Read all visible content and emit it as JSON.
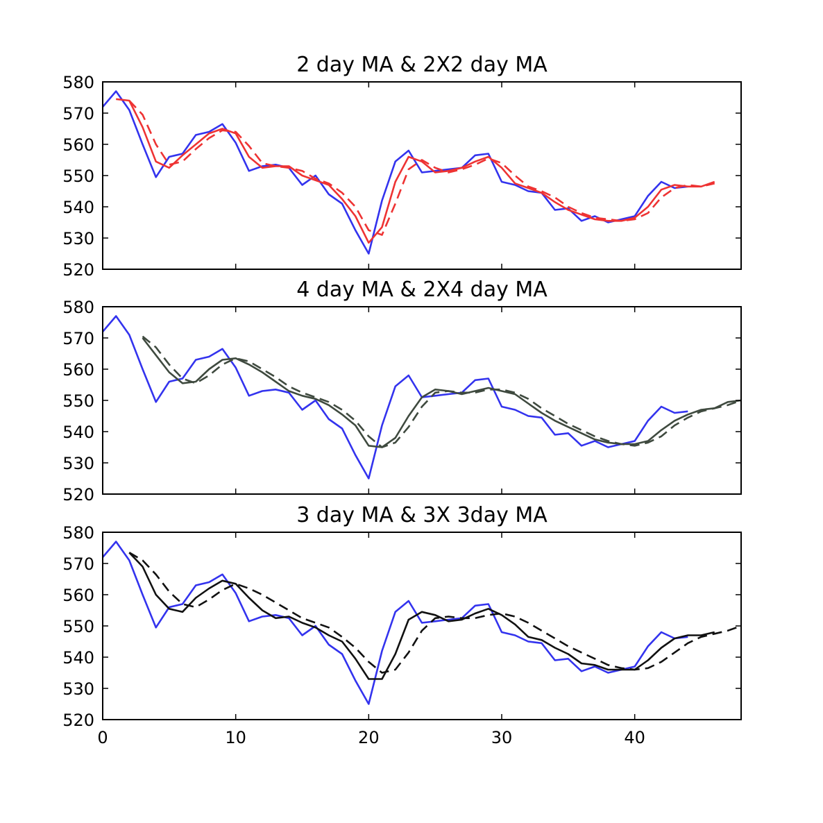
{
  "chart_data": [
    {
      "type": "line",
      "title": "2 day MA & 2X2 day MA",
      "xlim": [
        0,
        48
      ],
      "ylim": [
        520,
        580
      ],
      "xticks": [
        0,
        10,
        20,
        30,
        40
      ],
      "yticks": [
        520,
        530,
        540,
        550,
        560,
        570,
        580
      ],
      "show_xtick_labels": false,
      "grid": false,
      "series": [
        {
          "x": [
            0,
            1,
            2,
            3,
            4,
            5,
            6,
            7,
            8,
            9,
            10,
            11,
            12,
            13,
            14,
            15,
            16,
            17,
            18,
            19,
            20,
            21,
            22,
            23,
            24,
            25,
            26,
            27,
            28,
            29,
            30,
            31,
            32,
            33,
            34,
            35,
            36,
            37,
            38,
            39,
            40,
            41,
            42,
            43,
            44
          ],
          "values": [
            572,
            577,
            571,
            560,
            549.5,
            556,
            557,
            563,
            564,
            566.5,
            560.5,
            551.5,
            553,
            553.5,
            552.5,
            547,
            550,
            544,
            541,
            532.5,
            525,
            542,
            554.5,
            558,
            551,
            551.5,
            552,
            552.5,
            556.5,
            557,
            548,
            547,
            545,
            544.5,
            539,
            539.5,
            535.5,
            537,
            535,
            536,
            537,
            543.5,
            548,
            546,
            546.5
          ],
          "color": "#3333ee",
          "dash": ""
        },
        {
          "x": [
            1,
            2,
            3,
            4,
            5,
            6,
            7,
            8,
            9,
            10,
            11,
            12,
            13,
            14,
            15,
            16,
            17,
            18,
            19,
            20,
            21,
            22,
            23,
            24,
            25,
            26,
            27,
            28,
            29,
            30,
            31,
            32,
            33,
            34,
            35,
            36,
            37,
            38,
            39,
            40,
            41,
            42,
            43,
            44,
            45,
            46
          ],
          "values": [
            574.5,
            574,
            565.5,
            554.5,
            552.5,
            556.5,
            560,
            563.5,
            565,
            563.5,
            556,
            552.5,
            553,
            553,
            550,
            548.5,
            547,
            542.5,
            537,
            528.5,
            533.5,
            548,
            556,
            554.5,
            551,
            551.5,
            552.5,
            554.5,
            556,
            552.5,
            547.5,
            546,
            544.5,
            541.5,
            539,
            537.5,
            536,
            535.5,
            535.5,
            536.5,
            540,
            545.5,
            547,
            546.5,
            546.5,
            548
          ],
          "color": "#ee3333",
          "dash": ""
        },
        {
          "x": [
            2,
            3,
            4,
            5,
            6,
            7,
            8,
            9,
            10,
            11,
            12,
            13,
            14,
            15,
            16,
            17,
            18,
            19,
            20,
            21,
            22,
            23,
            24,
            25,
            26,
            27,
            28,
            29,
            30,
            31,
            32,
            33,
            34,
            35,
            36,
            37,
            38,
            39,
            40,
            41,
            42,
            43,
            44,
            45,
            46
          ],
          "values": [
            574,
            569.5,
            560,
            553.5,
            554.5,
            558.5,
            562,
            564.5,
            564,
            559.5,
            554,
            553,
            552.5,
            551.5,
            549,
            547.5,
            544.5,
            540,
            532.5,
            531,
            541,
            552,
            555,
            552.5,
            551,
            552,
            553.5,
            555.5,
            554,
            550,
            546.5,
            545,
            543,
            540,
            538,
            536.5,
            536,
            535.5,
            536,
            538,
            543,
            546,
            547,
            546.5,
            547.5
          ],
          "color": "#ee3333",
          "dash": "14,8"
        }
      ]
    },
    {
      "type": "line",
      "title": "4 day MA & 2X4 day MA",
      "xlim": [
        0,
        48
      ],
      "ylim": [
        520,
        580
      ],
      "xticks": [
        0,
        10,
        20,
        30,
        40
      ],
      "yticks": [
        520,
        530,
        540,
        550,
        560,
        570,
        580
      ],
      "show_xtick_labels": false,
      "grid": false,
      "series": [
        {
          "x": [
            0,
            1,
            2,
            3,
            4,
            5,
            6,
            7,
            8,
            9,
            10,
            11,
            12,
            13,
            14,
            15,
            16,
            17,
            18,
            19,
            20,
            21,
            22,
            23,
            24,
            25,
            26,
            27,
            28,
            29,
            30,
            31,
            32,
            33,
            34,
            35,
            36,
            37,
            38,
            39,
            40,
            41,
            42,
            43,
            44
          ],
          "values": [
            572,
            577,
            571,
            560,
            549.5,
            556,
            557,
            563,
            564,
            566.5,
            560.5,
            551.5,
            553,
            553.5,
            552.5,
            547,
            550,
            544,
            541,
            532.5,
            525,
            542,
            554.5,
            558,
            551,
            551.5,
            552,
            552.5,
            556.5,
            557,
            548,
            547,
            545,
            544.5,
            539,
            539.5,
            535.5,
            537,
            535,
            536,
            537,
            543.5,
            548,
            546,
            546.5
          ],
          "color": "#3333ee",
          "dash": ""
        },
        {
          "x": [
            3,
            4,
            5,
            6,
            7,
            8,
            9,
            10,
            11,
            12,
            13,
            14,
            15,
            16,
            17,
            18,
            19,
            20,
            21,
            22,
            23,
            24,
            25,
            26,
            27,
            28,
            29,
            30,
            31,
            32,
            33,
            34,
            35,
            36,
            37,
            38,
            39,
            40,
            41,
            42,
            43,
            44,
            45,
            46,
            47,
            48
          ],
          "values": [
            570,
            564.5,
            559,
            555.5,
            556,
            560,
            563,
            563.5,
            561.5,
            559,
            556,
            553,
            551.5,
            550.5,
            548.5,
            545.5,
            542,
            535.5,
            535,
            538,
            545,
            551,
            553.5,
            553,
            552,
            553,
            554,
            553,
            552,
            549,
            546,
            543.5,
            541.5,
            539.5,
            537.5,
            536.5,
            536,
            536,
            537,
            540.5,
            543.5,
            545.5,
            547,
            547.5,
            549.5,
            550
          ],
          "color": "#3f4a3f",
          "dash": ""
        },
        {
          "x": [
            3,
            4,
            5,
            6,
            7,
            8,
            9,
            10,
            11,
            12,
            13,
            14,
            15,
            16,
            17,
            18,
            19,
            20,
            21,
            22,
            23,
            24,
            25,
            26,
            27,
            28,
            29,
            30,
            31,
            32,
            33,
            34,
            35,
            36,
            37,
            38,
            39,
            40,
            41,
            42,
            43,
            44,
            45,
            46,
            47,
            48
          ],
          "values": [
            570.5,
            567,
            561.5,
            557,
            555.5,
            558,
            561.5,
            563.5,
            562.5,
            560,
            557.5,
            554.5,
            552.5,
            551,
            549.5,
            547,
            543.5,
            538.5,
            535,
            536.5,
            541.5,
            548,
            552.5,
            553,
            552.5,
            552.5,
            553.5,
            553.5,
            552.5,
            550.5,
            547.5,
            545,
            542.5,
            540.5,
            538.5,
            537,
            536,
            535.5,
            536.5,
            538.5,
            542,
            544.5,
            546.5,
            547.5,
            548.5,
            550
          ],
          "color": "#3f4a3f",
          "dash": "14,8"
        }
      ]
    },
    {
      "type": "line",
      "title": "3 day MA & 3X 3day MA",
      "xlim": [
        0,
        48
      ],
      "ylim": [
        520,
        580
      ],
      "xticks": [
        0,
        10,
        20,
        30,
        40
      ],
      "yticks": [
        520,
        530,
        540,
        550,
        560,
        570,
        580
      ],
      "show_xtick_labels": true,
      "grid": false,
      "series": [
        {
          "x": [
            0,
            1,
            2,
            3,
            4,
            5,
            6,
            7,
            8,
            9,
            10,
            11,
            12,
            13,
            14,
            15,
            16,
            17,
            18,
            19,
            20,
            21,
            22,
            23,
            24,
            25,
            26,
            27,
            28,
            29,
            30,
            31,
            32,
            33,
            34,
            35,
            36,
            37,
            38,
            39,
            40,
            41,
            42,
            43,
            44
          ],
          "values": [
            572,
            577,
            571,
            560,
            549.5,
            556,
            557,
            563,
            564,
            566.5,
            560.5,
            551.5,
            553,
            553.5,
            552.5,
            547,
            550,
            544,
            541,
            532.5,
            525,
            542,
            554.5,
            558,
            551,
            551.5,
            552,
            552.5,
            556.5,
            557,
            548,
            547,
            545,
            544.5,
            539,
            539.5,
            535.5,
            537,
            535,
            536,
            537,
            543.5,
            548,
            546,
            546.5
          ],
          "color": "#3333ee",
          "dash": ""
        },
        {
          "x": [
            2,
            3,
            4,
            5,
            6,
            7,
            8,
            9,
            10,
            11,
            12,
            13,
            14,
            15,
            16,
            17,
            18,
            19,
            20,
            21,
            22,
            23,
            24,
            25,
            26,
            27,
            28,
            29,
            30,
            31,
            32,
            33,
            34,
            35,
            36,
            37,
            38,
            39,
            40,
            41,
            42,
            43,
            44,
            45,
            46
          ],
          "values": [
            573.5,
            569,
            560,
            555.5,
            554.5,
            559,
            562,
            564.5,
            563.5,
            559,
            555,
            552.5,
            553,
            551,
            549.5,
            547,
            545,
            539.5,
            533,
            533,
            541,
            552,
            554.5,
            553.5,
            551.5,
            552,
            554,
            555.5,
            553.5,
            550.5,
            546.5,
            545.5,
            543,
            541,
            538,
            537.5,
            536,
            536,
            536,
            539,
            543,
            546,
            547,
            547,
            548
          ],
          "color": "#111111",
          "dash": ""
        },
        {
          "x": [
            2,
            3,
            4,
            5,
            6,
            7,
            8,
            9,
            10,
            11,
            12,
            13,
            14,
            15,
            16,
            17,
            18,
            19,
            20,
            21,
            22,
            23,
            24,
            25,
            26,
            27,
            28,
            29,
            30,
            31,
            32,
            33,
            34,
            35,
            36,
            37,
            38,
            39,
            40,
            41,
            42,
            43,
            44,
            45,
            46,
            47,
            48
          ],
          "values": [
            573.5,
            571,
            566.5,
            561,
            557,
            556,
            558.5,
            561.5,
            563.5,
            562,
            560,
            557.5,
            555,
            552.5,
            551,
            549.5,
            546.5,
            543,
            538.5,
            535,
            536,
            541.5,
            548.5,
            552.5,
            553,
            552.5,
            552.5,
            553.5,
            554,
            553,
            551,
            548.5,
            546,
            543.5,
            541.5,
            539.5,
            537.5,
            536.5,
            536,
            536.5,
            538.5,
            541.5,
            544.5,
            546.5,
            547.5,
            548.5,
            550
          ],
          "color": "#111111",
          "dash": "14,8"
        }
      ]
    }
  ]
}
